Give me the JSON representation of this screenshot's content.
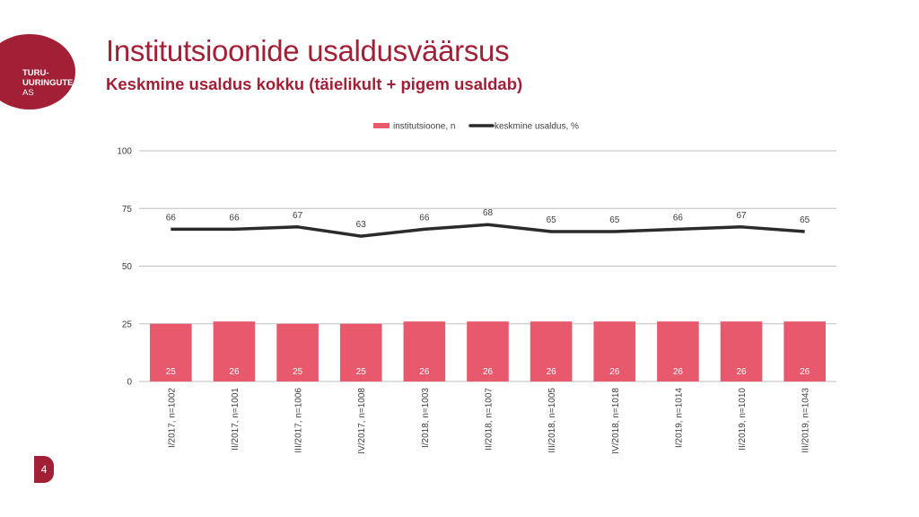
{
  "logo": {
    "line1": "TURU-",
    "line2": "UURINGUTE",
    "line3": "AS"
  },
  "header": {
    "title": "Institutsioonide usaldusväärsus",
    "subtitle": "Keskmine usaldus kokku (täielikult + pigem usaldab)"
  },
  "page_number": "4",
  "colors": {
    "accent": "#a31f36",
    "bar": "#e8596e",
    "line": "#2b2b2b",
    "grid": "#bfbfbf"
  },
  "chart_data": {
    "type": "bar",
    "title": "",
    "xlabel": "",
    "ylabel": "",
    "ylim": [
      0,
      100
    ],
    "yticks": [
      0,
      25,
      50,
      75,
      100
    ],
    "grid": true,
    "legend_placement": "top-center",
    "categories": [
      "I/2017, n=1002",
      "II/2017, n=1001",
      "III/2017, n=1006",
      "IV/2017, n=1008",
      "I/2018, n=1003",
      "II/2018, n=1007",
      "III/2018, n=1005",
      "IV/2018, n=1018",
      "I/2019, n=1014",
      "II/2019, n=1010",
      "III/2019, n=1043"
    ],
    "series": [
      {
        "name": "institutsioone, n",
        "type": "bar",
        "values": [
          25,
          26,
          25,
          25,
          26,
          26,
          26,
          26,
          26,
          26,
          26
        ]
      },
      {
        "name": "keskmine usaldus, %",
        "type": "line",
        "values": [
          66,
          66,
          67,
          63,
          66,
          68,
          65,
          65,
          66,
          67,
          65
        ]
      }
    ]
  }
}
